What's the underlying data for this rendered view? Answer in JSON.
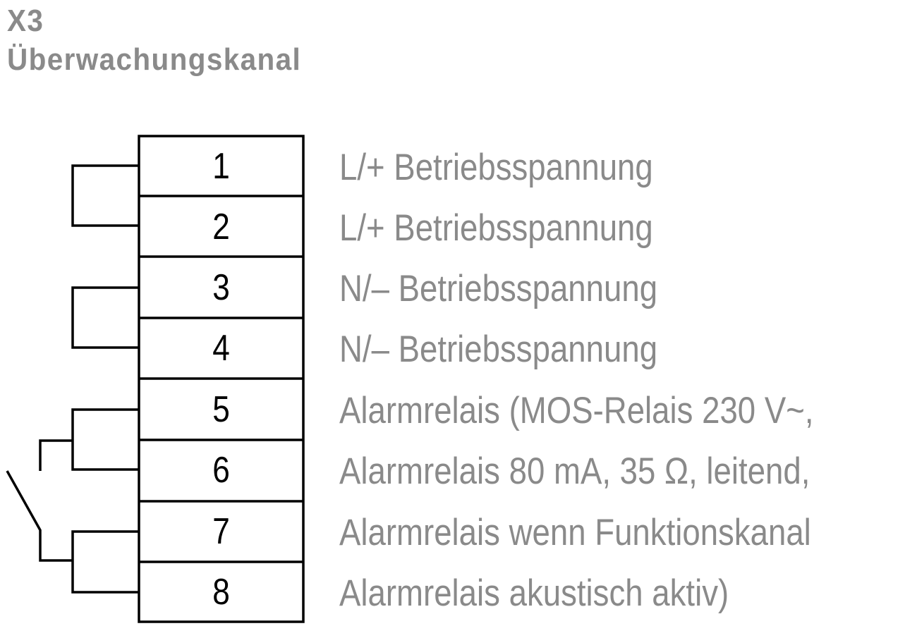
{
  "header": {
    "code": "X3",
    "title": "Überwachungskanal"
  },
  "terminals": [
    {
      "number": "1",
      "description": "L/+ Betriebsspannung"
    },
    {
      "number": "2",
      "description": "L/+ Betriebsspannung"
    },
    {
      "number": "3",
      "description": "N/– Betriebsspannung"
    },
    {
      "number": "4",
      "description": "N/– Betriebsspannung"
    },
    {
      "number": "5",
      "description": "Alarmrelais (MOS-Relais 230 V~,"
    },
    {
      "number": "6",
      "description": "Alarmrelais 80 mA, 35 Ω, leitend,"
    },
    {
      "number": "7",
      "description": "Alarmrelais wenn Funktionskanal"
    },
    {
      "number": "8",
      "description": "Alarmrelais akustisch aktiv)"
    }
  ],
  "colors": {
    "heading": "#8a8a8a",
    "description": "#8a8a8a",
    "lines": "#000000"
  }
}
